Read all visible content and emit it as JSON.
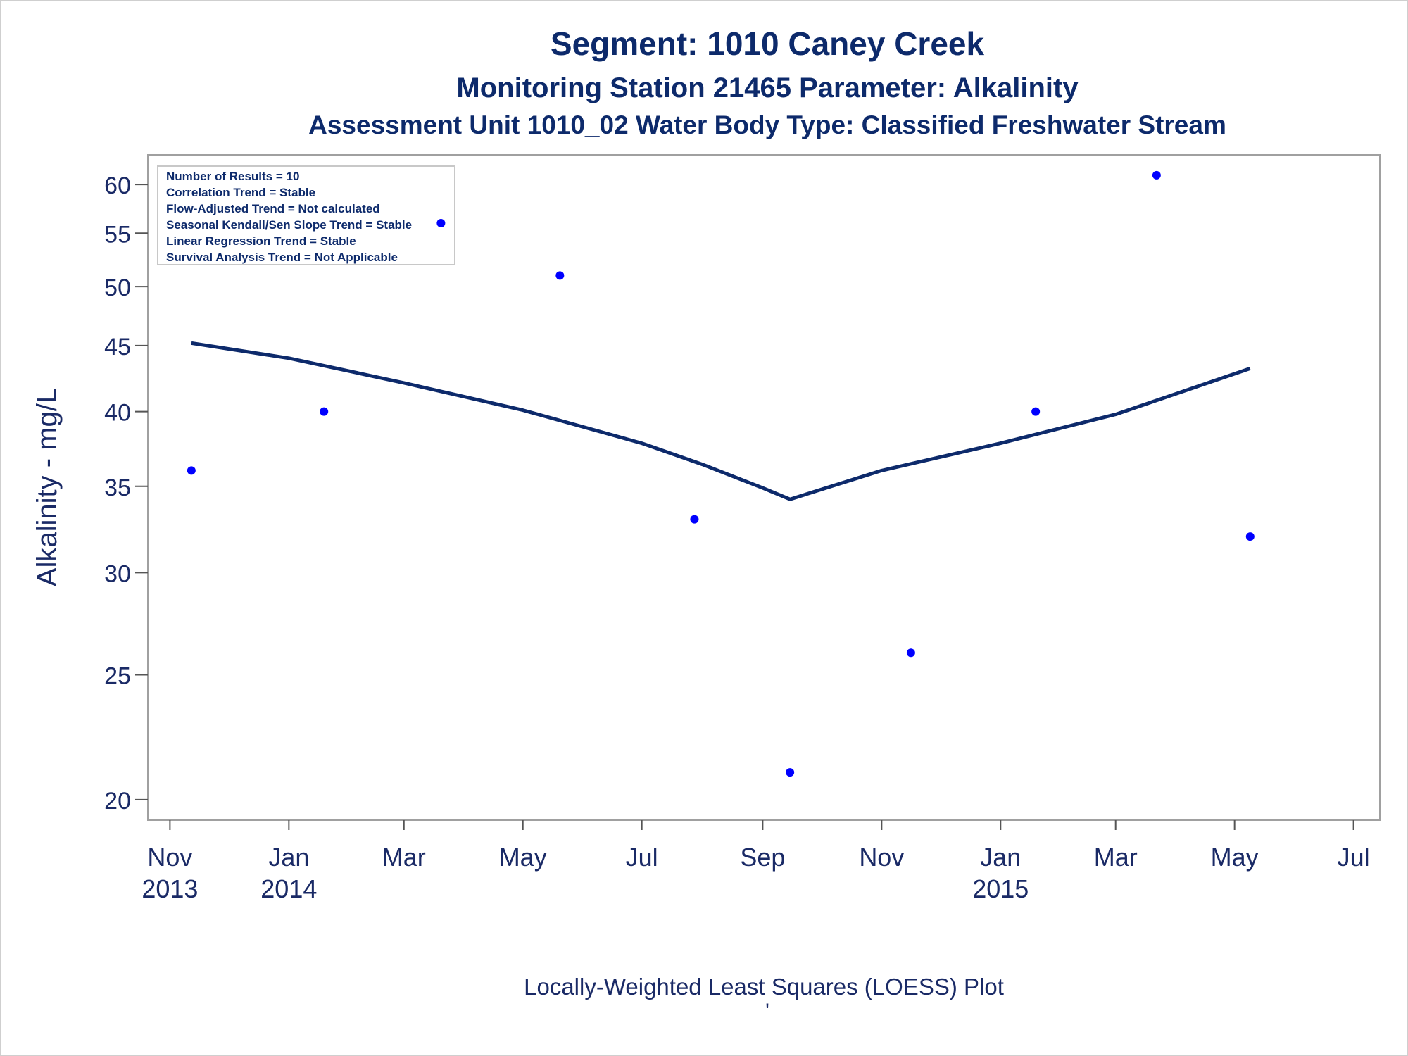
{
  "titles": {
    "line1": "Segment: 1010  Caney Creek",
    "line2": "Monitoring Station 21465 Parameter: Alkalinity",
    "line3": "Assessment Unit 1010_02   Water Body Type: Classified Freshwater Stream"
  },
  "legend_box": [
    "Number of Results = 10",
    "Correlation Trend = Stable",
    "Flow-Adjusted Trend = Not calculated",
    "Seasonal Kendall/Sen Slope Trend = Stable",
    "Linear Regression Trend = Stable",
    "Survival Analysis Trend = Not Applicable"
  ],
  "footnote": "Locally-Weighted Least Squares (LOESS) Plot",
  "footnote_mark": "'",
  "colors": {
    "points": "#0000ff",
    "line": "#0d2a6b",
    "text": "#0d2a6b",
    "frame": "#a0a0a0"
  },
  "chart_data": {
    "type": "scatter",
    "title": "Segment: 1010  Caney Creek",
    "ylabel": "Alkalinity - mg/L",
    "xlabel": "",
    "yscale": "log",
    "ylim": [
      19.6,
      62
    ],
    "xlim": [
      "2013-10-25",
      "2015-07-08"
    ],
    "grid": false,
    "y_ticks": [
      20,
      25,
      30,
      35,
      40,
      45,
      50,
      55,
      60
    ],
    "x_ticks": [
      {
        "date": "2013-11-01",
        "label": "Nov",
        "year": "2013"
      },
      {
        "date": "2014-01-01",
        "label": "Jan",
        "year": "2014"
      },
      {
        "date": "2014-03-01",
        "label": "Mar",
        "year": ""
      },
      {
        "date": "2014-05-01",
        "label": "May",
        "year": ""
      },
      {
        "date": "2014-07-01",
        "label": "Jul",
        "year": ""
      },
      {
        "date": "2014-09-01",
        "label": "Sep",
        "year": ""
      },
      {
        "date": "2014-11-01",
        "label": "Nov",
        "year": ""
      },
      {
        "date": "2015-01-01",
        "label": "Jan",
        "year": "2015"
      },
      {
        "date": "2015-03-01",
        "label": "Mar",
        "year": ""
      },
      {
        "date": "2015-05-01",
        "label": "May",
        "year": ""
      },
      {
        "date": "2015-07-01",
        "label": "Jul",
        "year": ""
      }
    ],
    "points": [
      {
        "x": "2013-11-12",
        "y": 36
      },
      {
        "x": "2014-01-19",
        "y": 40
      },
      {
        "x": "2014-03-20",
        "y": 56
      },
      {
        "x": "2014-05-20",
        "y": 51
      },
      {
        "x": "2014-07-28",
        "y": 33
      },
      {
        "x": "2014-09-15",
        "y": 21
      },
      {
        "x": "2014-11-16",
        "y": 26
      },
      {
        "x": "2015-01-19",
        "y": 40
      },
      {
        "x": "2015-03-22",
        "y": 61
      },
      {
        "x": "2015-05-09",
        "y": 32
      }
    ],
    "loess": [
      {
        "x": "2013-11-12",
        "y": 45.2
      },
      {
        "x": "2014-01-01",
        "y": 44.0
      },
      {
        "x": "2014-03-01",
        "y": 42.1
      },
      {
        "x": "2014-05-01",
        "y": 40.1
      },
      {
        "x": "2014-07-01",
        "y": 37.8
      },
      {
        "x": "2014-08-01",
        "y": 36.4
      },
      {
        "x": "2014-09-01",
        "y": 34.9
      },
      {
        "x": "2014-09-15",
        "y": 34.2
      },
      {
        "x": "2014-11-01",
        "y": 36.0
      },
      {
        "x": "2015-01-01",
        "y": 37.8
      },
      {
        "x": "2015-03-01",
        "y": 39.8
      },
      {
        "x": "2015-05-09",
        "y": 43.2
      }
    ]
  }
}
